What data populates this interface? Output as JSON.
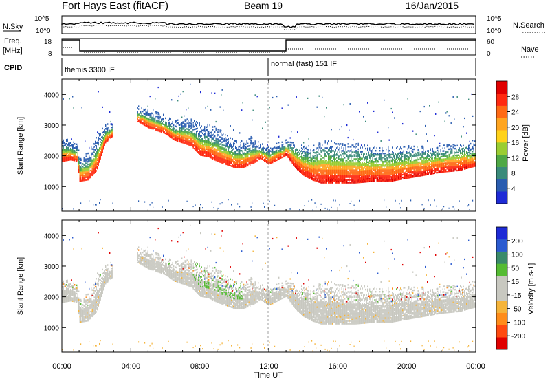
{
  "header": {
    "station": "Fort Hays East (fitACF)",
    "beam": "Beam 19",
    "date": "16/Jan/2015"
  },
  "top_panels": {
    "nsky_label": "N.Sky",
    "nsearch_label": "N.Search",
    "freq_label_1": "Freq.",
    "freq_label_2": "[MHz]",
    "nave_label": "Nave",
    "cpid_label": "CPID",
    "nsky_ticks": [
      "10^5",
      "10^0"
    ],
    "freq_ticks": [
      "18",
      "8"
    ],
    "nave_ticks": [
      "60",
      "0"
    ],
    "cpid_1": "themis 3300 IF",
    "cpid_2": "normal (fast) 151 IF"
  },
  "colorbar_power": {
    "title": "Power [dB]",
    "ticks": [
      "28",
      "24",
      "20",
      "16",
      "12",
      "8",
      "4"
    ],
    "colors": [
      "#1e2bd6",
      "#2a5db0",
      "#3a8a7a",
      "#4fa845",
      "#9acd32",
      "#ffd21a",
      "#ffa520",
      "#ff6a14",
      "#ff2a10",
      "#e00000"
    ]
  },
  "colorbar_velocity": {
    "title": "Velocity [m s-1]",
    "ticks": [
      "200",
      "100",
      "50",
      "15",
      "-15",
      "-50",
      "-100",
      "-200"
    ],
    "colors": [
      "#1e2bd6",
      "#2b5bd0",
      "#3a8a6a",
      "#55bb33",
      "#c8c8c0",
      "#c8c8c0",
      "#f5b43a",
      "#ff8c1a",
      "#ff4a10",
      "#e00000"
    ]
  },
  "chart_data": [
    {
      "type": "heatmap",
      "title": "Power",
      "xlabel": "Time UT",
      "ylabel": "Slant Range [km]",
      "x_ticks": [
        "00:00",
        "04:00",
        "08:00",
        "12:00",
        "16:00",
        "20:00",
        "00:00"
      ],
      "y_ticks": [
        1000,
        2000,
        3000,
        4000
      ],
      "xlim": [
        0,
        24
      ],
      "ylim": [
        200,
        4500
      ],
      "backscatter_band": {
        "time": [
          0.0,
          0.5,
          0.9,
          1.0,
          1.5,
          2.0,
          2.5,
          2.9,
          4.4,
          5.0,
          5.5,
          6.0,
          6.5,
          7.0,
          7.5,
          8.0,
          8.5,
          9.0,
          9.5,
          10.0,
          10.5,
          11.0,
          11.5,
          12.0,
          13.0,
          13.5,
          14.0,
          14.5,
          15.0,
          15.5,
          16.0,
          17.0,
          18.0,
          19.0,
          20.0,
          21.0,
          22.0,
          23.0,
          24.0
        ],
        "lower_km": [
          1800,
          1850,
          1800,
          1150,
          1200,
          1500,
          2400,
          2600,
          3100,
          2900,
          2800,
          2700,
          2500,
          2400,
          2300,
          2000,
          1950,
          1800,
          1700,
          1600,
          1600,
          1700,
          1900,
          1700,
          2000,
          1600,
          1350,
          1200,
          1100,
          1100,
          1100,
          1100,
          1150,
          1150,
          1250,
          1350,
          1450,
          1500,
          1650
        ],
        "upper_km": [
          2600,
          2500,
          2400,
          2000,
          2100,
          2700,
          3000,
          3050,
          3600,
          3500,
          3400,
          3300,
          3100,
          3200,
          3200,
          3000,
          3000,
          2900,
          2700,
          2500,
          2500,
          2600,
          2400,
          2300,
          2500,
          2400,
          2300,
          2300,
          2500,
          2500,
          2400,
          2400,
          2300,
          2300,
          2300,
          2300,
          2300,
          2400,
          2500
        ]
      },
      "note_peak_power_db": 28
    },
    {
      "type": "heatmap",
      "title": "Velocity",
      "xlabel": "Time UT",
      "ylabel": "Slant Range [km]",
      "x_ticks": [
        "00:00",
        "04:00",
        "08:00",
        "12:00",
        "16:00",
        "20:00",
        "00:00"
      ],
      "y_ticks": [
        1000,
        2000,
        3000,
        4000
      ],
      "xlim": [
        0,
        24
      ],
      "ylim": [
        200,
        4500
      ]
    }
  ]
}
